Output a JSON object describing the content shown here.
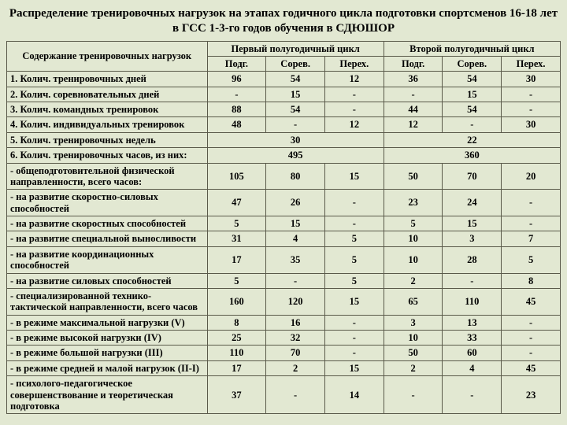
{
  "title": "Распределение тренировочных нагрузок на этапах годичного цикла подготовки спортсменов 16-18 лет в ГСС 1-3-го годов обучения в СДЮШОР",
  "header": {
    "col0": "Содержание тренировочных нагрузок",
    "cycle1": "Первый полугодичный цикл",
    "cycle2": "Второй полугодичный цикл",
    "sub": [
      "Подг.",
      "Сорев.",
      "Перех.",
      "Подг.",
      "Сорев.",
      "Перех."
    ]
  },
  "rows": [
    {
      "label": "1. Колич. тренировочных дней",
      "v": [
        "96",
        "54",
        "12",
        "36",
        "54",
        "30"
      ]
    },
    {
      "label": "2. Колич. соревновательных дней",
      "v": [
        "-",
        "15",
        "-",
        "-",
        "15",
        "-"
      ]
    },
    {
      "label": "3. Колич. командных тренировок",
      "v": [
        "88",
        "54",
        "-",
        "44",
        "54",
        "-"
      ]
    },
    {
      "label": "4. Колич. индивидуальных тренировок",
      "v": [
        "48",
        "-",
        "12",
        "12",
        "-",
        "30"
      ]
    },
    {
      "label": "5. Колич. тренировочных недель",
      "merge": [
        "30",
        "22"
      ]
    },
    {
      "label": "6. Колич. тренировочных часов, из них:",
      "merge": [
        "495",
        "360"
      ]
    },
    {
      "label": "- общеподготовительной физической направленности, всего часов:",
      "v": [
        "105",
        "80",
        "15",
        "50",
        "70",
        "20"
      ]
    },
    {
      "label": "- на развитие скоростно-силовых способностей",
      "v": [
        "47",
        "26",
        "-",
        "23",
        "24",
        "-"
      ]
    },
    {
      "label": "- на развитие скоростных способностей",
      "v": [
        "5",
        "15",
        "-",
        "5",
        "15",
        "-"
      ]
    },
    {
      "label": "- на развитие специальной выносливости",
      "v": [
        "31",
        "4",
        "5",
        "10",
        "3",
        "7"
      ]
    },
    {
      "label": "- на развитие координационных способностей",
      "v": [
        "17",
        "35",
        "5",
        "10",
        "28",
        "5"
      ]
    },
    {
      "label": "- на развитие силовых способностей",
      "v": [
        "5",
        "-",
        "5",
        "2",
        "-",
        "8"
      ]
    },
    {
      "label": "- специализированной технико-тактической направленности, всего часов",
      "v": [
        "160",
        "120",
        "15",
        "65",
        "110",
        "45"
      ]
    },
    {
      "label": "- в режиме максимальной нагрузки (V)",
      "v": [
        "8",
        "16",
        "-",
        "3",
        "13",
        "-"
      ]
    },
    {
      "label": "- в режиме высокой нагрузки (IV)",
      "v": [
        "25",
        "32",
        "-",
        "10",
        "33",
        "-"
      ]
    },
    {
      "label": "- в режиме большой нагрузки (III)",
      "v": [
        "110",
        "70",
        "-",
        "50",
        "60",
        "-"
      ]
    },
    {
      "label": "- в режиме средней и малой нагрузок (II-I)",
      "v": [
        "17",
        "2",
        "15",
        "2",
        "4",
        "45"
      ]
    },
    {
      "label": "- психолого-педагогическое совершенствование и теоретическая подготовка",
      "v": [
        "37",
        "-",
        "14",
        "-",
        "-",
        "23"
      ]
    }
  ]
}
